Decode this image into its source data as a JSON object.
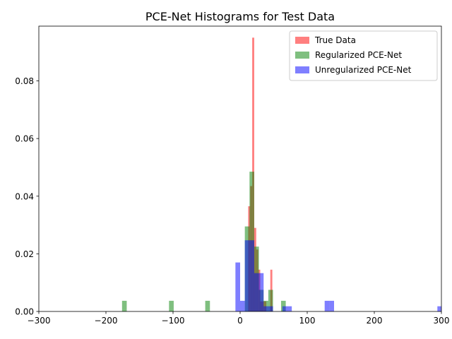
{
  "chart_data": {
    "type": "bar",
    "title": "PCE-Net Histograms for Test Data",
    "xlabel": "",
    "ylabel": "",
    "xlim": [
      -300,
      300
    ],
    "ylim": [
      0,
      0.099
    ],
    "xticks": [
      -300,
      -200,
      -100,
      0,
      100,
      200,
      300
    ],
    "xtick_labels": [
      "−300",
      "−200",
      "−100",
      "0",
      "100",
      "200",
      "300"
    ],
    "yticks": [
      0.0,
      0.02,
      0.04,
      0.06,
      0.08
    ],
    "ytick_labels": [
      "0.00",
      "0.02",
      "0.04",
      "0.06",
      "0.08"
    ],
    "grid": false,
    "legend_position": "top-right",
    "series": [
      {
        "name": "True Data",
        "color": "#ff0000",
        "opacity": 0.5,
        "bins": [
          {
            "x0": 12.0,
            "x1": 15.0,
            "y": 0.0365
          },
          {
            "x0": 15.0,
            "x1": 18.0,
            "y": 0.0435
          },
          {
            "x0": 18.0,
            "x1": 21.0,
            "y": 0.095
          },
          {
            "x0": 21.0,
            "x1": 24.0,
            "y": 0.029
          },
          {
            "x0": 24.0,
            "x1": 27.0,
            "y": 0.0215
          },
          {
            "x0": 27.0,
            "x1": 30.0,
            "y": 0.0145
          },
          {
            "x0": 30.0,
            "x1": 33.0,
            "y": 0.0035
          },
          {
            "x0": 33.0,
            "x1": 36.0,
            "y": 0.0035
          },
          {
            "x0": 36.0,
            "x1": 39.0,
            "y": 0.0035
          },
          {
            "x0": 45.0,
            "x1": 48.0,
            "y": 0.0145
          }
        ]
      },
      {
        "name": "Regularized PCE-Net",
        "color": "#008000",
        "opacity": 0.5,
        "bins": [
          {
            "x0": -176.0,
            "x1": -169.0,
            "y": 0.0037
          },
          {
            "x0": -106.0,
            "x1": -99.0,
            "y": 0.0037
          },
          {
            "x0": -52.0,
            "x1": -45.0,
            "y": 0.0037
          },
          {
            "x0": 7.0,
            "x1": 14.0,
            "y": 0.0295
          },
          {
            "x0": 14.0,
            "x1": 21.0,
            "y": 0.0485
          },
          {
            "x0": 21.0,
            "x1": 28.0,
            "y": 0.0225
          },
          {
            "x0": 28.0,
            "x1": 35.0,
            "y": 0.0075
          },
          {
            "x0": 35.0,
            "x1": 42.0,
            "y": 0.0037
          },
          {
            "x0": 42.0,
            "x1": 49.0,
            "y": 0.0075
          },
          {
            "x0": 61.0,
            "x1": 68.0,
            "y": 0.0037
          }
        ]
      },
      {
        "name": "Unregularized PCE-Net",
        "color": "#0000ff",
        "opacity": 0.5,
        "bins": [
          {
            "x0": -7.0,
            "x1": 0.0,
            "y": 0.017
          },
          {
            "x0": 0.0,
            "x1": 7.0,
            "y": 0.0037
          },
          {
            "x0": 7.0,
            "x1": 14.0,
            "y": 0.0247
          },
          {
            "x0": 14.0,
            "x1": 21.0,
            "y": 0.0247
          },
          {
            "x0": 21.0,
            "x1": 28.0,
            "y": 0.0133
          },
          {
            "x0": 28.0,
            "x1": 35.0,
            "y": 0.0133
          },
          {
            "x0": 35.0,
            "x1": 42.0,
            "y": 0.0018
          },
          {
            "x0": 42.0,
            "x1": 49.0,
            "y": 0.0018
          },
          {
            "x0": 63.0,
            "x1": 70.0,
            "y": 0.0018
          },
          {
            "x0": 70.0,
            "x1": 77.0,
            "y": 0.0018
          },
          {
            "x0": 126.0,
            "x1": 133.0,
            "y": 0.0037
          },
          {
            "x0": 133.0,
            "x1": 140.0,
            "y": 0.0037
          },
          {
            "x0": 294.0,
            "x1": 301.0,
            "y": 0.0018
          }
        ]
      }
    ]
  }
}
